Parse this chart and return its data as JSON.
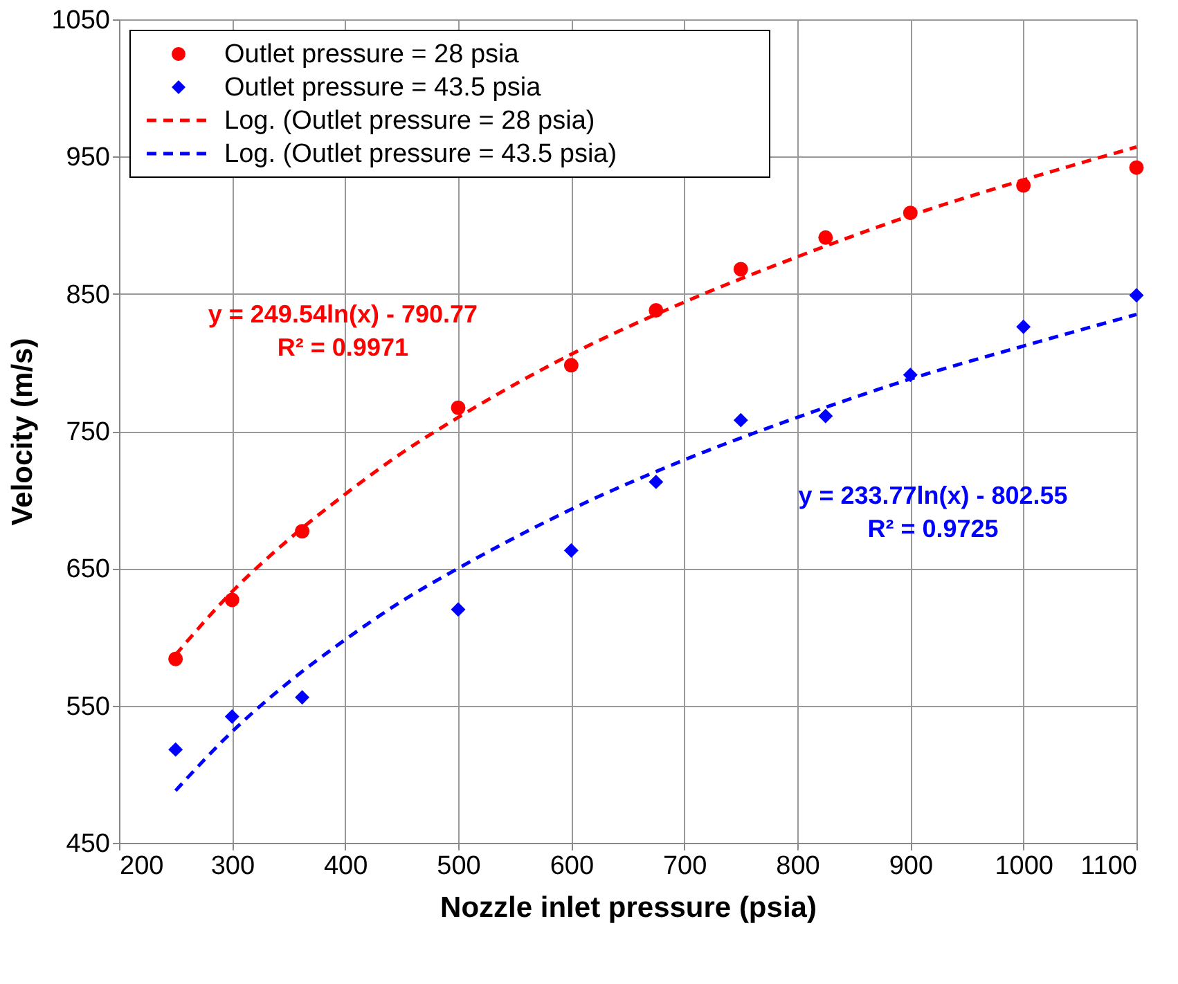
{
  "chart_data": {
    "type": "scatter",
    "xlabel": "Nozzle inlet pressure (psia)",
    "ylabel": "Velocity (m/s)",
    "xlim": [
      200,
      1100
    ],
    "xticks": [
      200,
      300,
      400,
      500,
      600,
      700,
      800,
      900,
      1000,
      1100
    ],
    "ylim": [
      450,
      1050
    ],
    "yticks": [
      450,
      550,
      650,
      750,
      850,
      950,
      1050
    ],
    "grid": true,
    "legend": "top left",
    "series": [
      {
        "name": "Outlet pressure = 28 psia",
        "marker": "circle",
        "color": "#ff0000",
        "x": [
          250,
          300,
          362,
          500,
          600,
          675,
          750,
          825,
          900,
          1000,
          1100
        ],
        "values": [
          584,
          627,
          677,
          767,
          798,
          838,
          868,
          891,
          909,
          929,
          942
        ]
      },
      {
        "name": "Outlet pressure = 43.5 psia",
        "marker": "diamond",
        "color": "#0000ff",
        "x": [
          250,
          300,
          362,
          500,
          600,
          675,
          750,
          825,
          900,
          1000,
          1100
        ],
        "values": [
          518,
          542,
          556,
          620,
          663,
          713,
          758,
          761,
          791,
          826,
          849
        ]
      },
      {
        "name": "Log. (Outlet pressure = 28 psia)",
        "type": "line",
        "line_style": "dashed",
        "color": "#ff0000",
        "x": [
          250,
          300,
          350,
          400,
          450,
          500,
          600,
          700,
          800,
          900,
          1000,
          1100
        ],
        "values": [
          587,
          633,
          671,
          704,
          734,
          760,
          806,
          844,
          877,
          907,
          933,
          957
        ]
      },
      {
        "name": "Log. (Outlet pressure = 43.5 psia)",
        "type": "line",
        "line_style": "dashed",
        "color": "#0000ff",
        "x": [
          250,
          300,
          350,
          400,
          450,
          500,
          600,
          700,
          800,
          900,
          1000,
          1100
        ],
        "values": [
          488,
          531,
          567,
          598,
          626,
          650,
          693,
          729,
          760,
          788,
          812,
          835
        ]
      }
    ],
    "annotations": [
      "y = 249.54ln(x) - 790.77\nR² = 0.9971",
      "y = 233.77ln(x) - 802.55\nR² = 0.9725"
    ]
  }
}
